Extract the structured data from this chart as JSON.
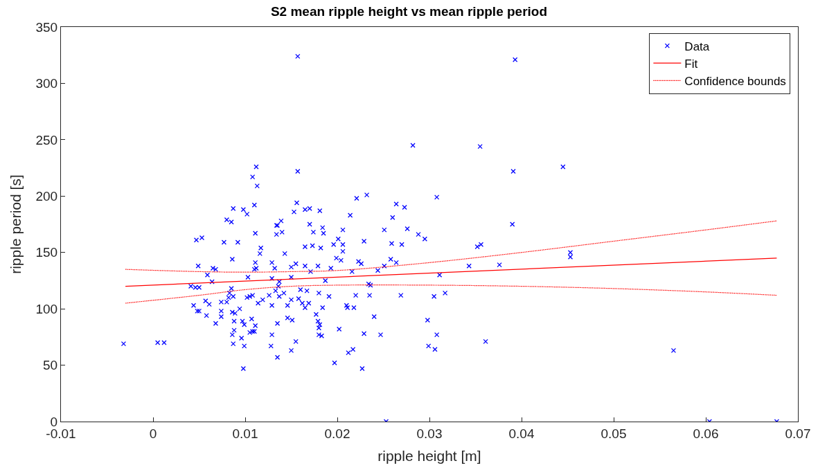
{
  "chart_data": {
    "type": "scatter",
    "title": "S2 mean ripple height vs mean ripple period",
    "xlabel": "ripple height [m]",
    "ylabel": "ripple period [s]",
    "xlim": [
      -0.01,
      0.07
    ],
    "xticks": [
      -0.01,
      0,
      0.01,
      0.02,
      0.03,
      0.04,
      0.05,
      0.06,
      0.07
    ],
    "ylim": [
      0,
      350
    ],
    "yticks": [
      0,
      50,
      100,
      150,
      200,
      250,
      300,
      350
    ],
    "legend": "top right",
    "series": [
      {
        "name": "Data",
        "marker": "cross",
        "color": "#0000ff",
        "x": [
          -0.0032,
          0.0005,
          0.0012,
          0.0157,
          0.0393,
          0.0445,
          0.0453,
          0.0453,
          0.0565,
          0.0604,
          0.0677,
          0.0253,
          0.0282,
          0.0355,
          0.0391,
          0.0308,
          0.0264,
          0.0273,
          0.026,
          0.0251,
          0.0276,
          0.0288,
          0.0295,
          0.039,
          0.0259,
          0.027,
          0.0352,
          0.0356,
          0.0258,
          0.0264,
          0.0251,
          0.0244,
          0.0343,
          0.0376,
          0.0311,
          0.0269,
          0.0305,
          0.0317,
          0.024,
          0.0298,
          0.0247,
          0.0308,
          0.0299,
          0.0306,
          0.0361,
          0.0157,
          0.0221,
          0.0232,
          0.0156,
          0.0153,
          0.0165,
          0.017,
          0.0181,
          0.0139,
          0.0214,
          0.0135,
          0.017,
          0.014,
          0.0184,
          0.0185,
          0.0174,
          0.0206,
          0.0165,
          0.0173,
          0.0182,
          0.0196,
          0.0201,
          0.0206,
          0.0206,
          0.0229,
          0.0143,
          0.0199,
          0.0204,
          0.0223,
          0.0226,
          0.015,
          0.0155,
          0.0165,
          0.0179,
          0.0171,
          0.0193,
          0.0216,
          0.015,
          0.0137,
          0.0136,
          0.0187,
          0.0234,
          0.0236,
          0.016,
          0.0167,
          0.0142,
          0.0137,
          0.018,
          0.022,
          0.0235,
          0.015,
          0.0158,
          0.0146,
          0.0162,
          0.0169,
          0.0165,
          0.0191,
          0.0184,
          0.021,
          0.0218,
          0.0211,
          0.0177,
          0.0146,
          0.0151,
          0.0179,
          0.0181,
          0.018,
          0.018,
          0.0183,
          0.0202,
          0.0229,
          0.0135,
          0.0155,
          0.015,
          0.0135,
          0.0197,
          0.0212,
          0.0217,
          0.0227,
          0.0112,
          0.0108,
          0.0113,
          0.011,
          0.0087,
          0.0098,
          0.0102,
          0.008,
          0.0085,
          0.0134,
          0.0134,
          0.0111,
          0.0047,
          0.0053,
          0.0077,
          0.0092,
          0.0117,
          0.0116,
          0.0086,
          0.0129,
          0.0132,
          0.0111,
          0.0112,
          0.011,
          0.0049,
          0.0065,
          0.0068,
          0.0059,
          0.0103,
          0.0129,
          0.0064,
          0.0041,
          0.0046,
          0.005,
          0.0085,
          0.0083,
          0.0082,
          0.0087,
          0.008,
          0.0074,
          0.0057,
          0.0061,
          0.0102,
          0.0105,
          0.0108,
          0.0114,
          0.0119,
          0.0126,
          0.0129,
          0.0133,
          0.0044,
          0.0048,
          0.005,
          0.0058,
          0.0074,
          0.0074,
          0.0086,
          0.0089,
          0.0094,
          0.0068,
          0.0088,
          0.0097,
          0.0099,
          0.0107,
          0.0111,
          0.0105,
          0.0108,
          0.011,
          0.0088,
          0.0086,
          0.0096,
          0.0087,
          0.0099,
          0.0129,
          0.0128,
          0.0098
        ],
        "values": [
          69,
          70,
          70,
          324,
          321,
          226,
          150,
          146,
          63,
          0,
          0,
          0,
          245,
          244,
          222,
          199,
          193,
          190,
          181,
          170,
          171,
          166,
          162,
          175,
          158,
          157,
          155,
          157,
          144,
          141,
          138,
          134,
          138,
          139,
          130,
          112,
          111,
          114,
          93,
          90,
          77,
          77,
          67,
          64,
          71,
          222,
          198,
          201,
          194,
          186,
          188,
          189,
          187,
          178,
          183,
          174,
          175,
          168,
          172,
          167,
          168,
          170,
          155,
          156,
          154,
          157,
          162,
          157,
          151,
          160,
          149,
          145,
          143,
          142,
          140,
          137,
          140,
          138,
          138,
          133,
          136,
          133,
          128,
          124,
          120,
          125,
          122,
          121,
          117,
          116,
          114,
          111,
          114,
          112,
          112,
          108,
          109,
          103,
          105,
          105,
          101,
          111,
          101,
          103,
          101,
          101,
          95,
          92,
          90,
          89,
          86,
          83,
          77,
          76,
          82,
          78,
          87,
          71,
          63,
          57,
          52,
          61,
          64,
          47,
          226,
          217,
          209,
          192,
          189,
          188,
          184,
          179,
          177,
          174,
          166,
          167,
          161,
          163,
          159,
          159,
          154,
          149,
          144,
          141,
          136,
          141,
          136,
          135,
          138,
          136,
          135,
          130,
          128,
          127,
          124,
          120,
          119,
          119,
          118,
          114,
          110,
          111,
          106,
          106,
          107,
          104,
          110,
          111,
          112,
          105,
          108,
          112,
          103,
          116,
          103,
          98,
          98,
          94,
          98,
          93,
          97,
          96,
          100,
          87,
          89,
          89,
          86,
          91,
          85,
          79,
          80,
          80,
          81,
          77,
          74,
          69,
          67,
          77,
          67,
          47
        ]
      },
      {
        "name": "Fit",
        "type": "line",
        "line_style": "solid",
        "color": "#ff0000",
        "x": [
          -0.003,
          0.0677
        ],
        "values": [
          120,
          145
        ]
      },
      {
        "name": "Confidence bounds",
        "type": "line",
        "line_style": "dotted",
        "color": "#ff0000",
        "x": [
          -0.003,
          0.005,
          0.01,
          0.015,
          0.02,
          0.03,
          0.04,
          0.05,
          0.06,
          0.0677
        ],
        "values": [
          135,
          133,
          132.5,
          133,
          134,
          141,
          150,
          160,
          170,
          178
        ]
      },
      {
        "type": "line",
        "line_style": "dotted",
        "color": "#ff0000",
        "x": [
          -0.003,
          0.005,
          0.01,
          0.015,
          0.02,
          0.03,
          0.04,
          0.05,
          0.06,
          0.0677
        ],
        "values": [
          105,
          112,
          117,
          120,
          121,
          121,
          120,
          118,
          115,
          112
        ]
      }
    ]
  }
}
